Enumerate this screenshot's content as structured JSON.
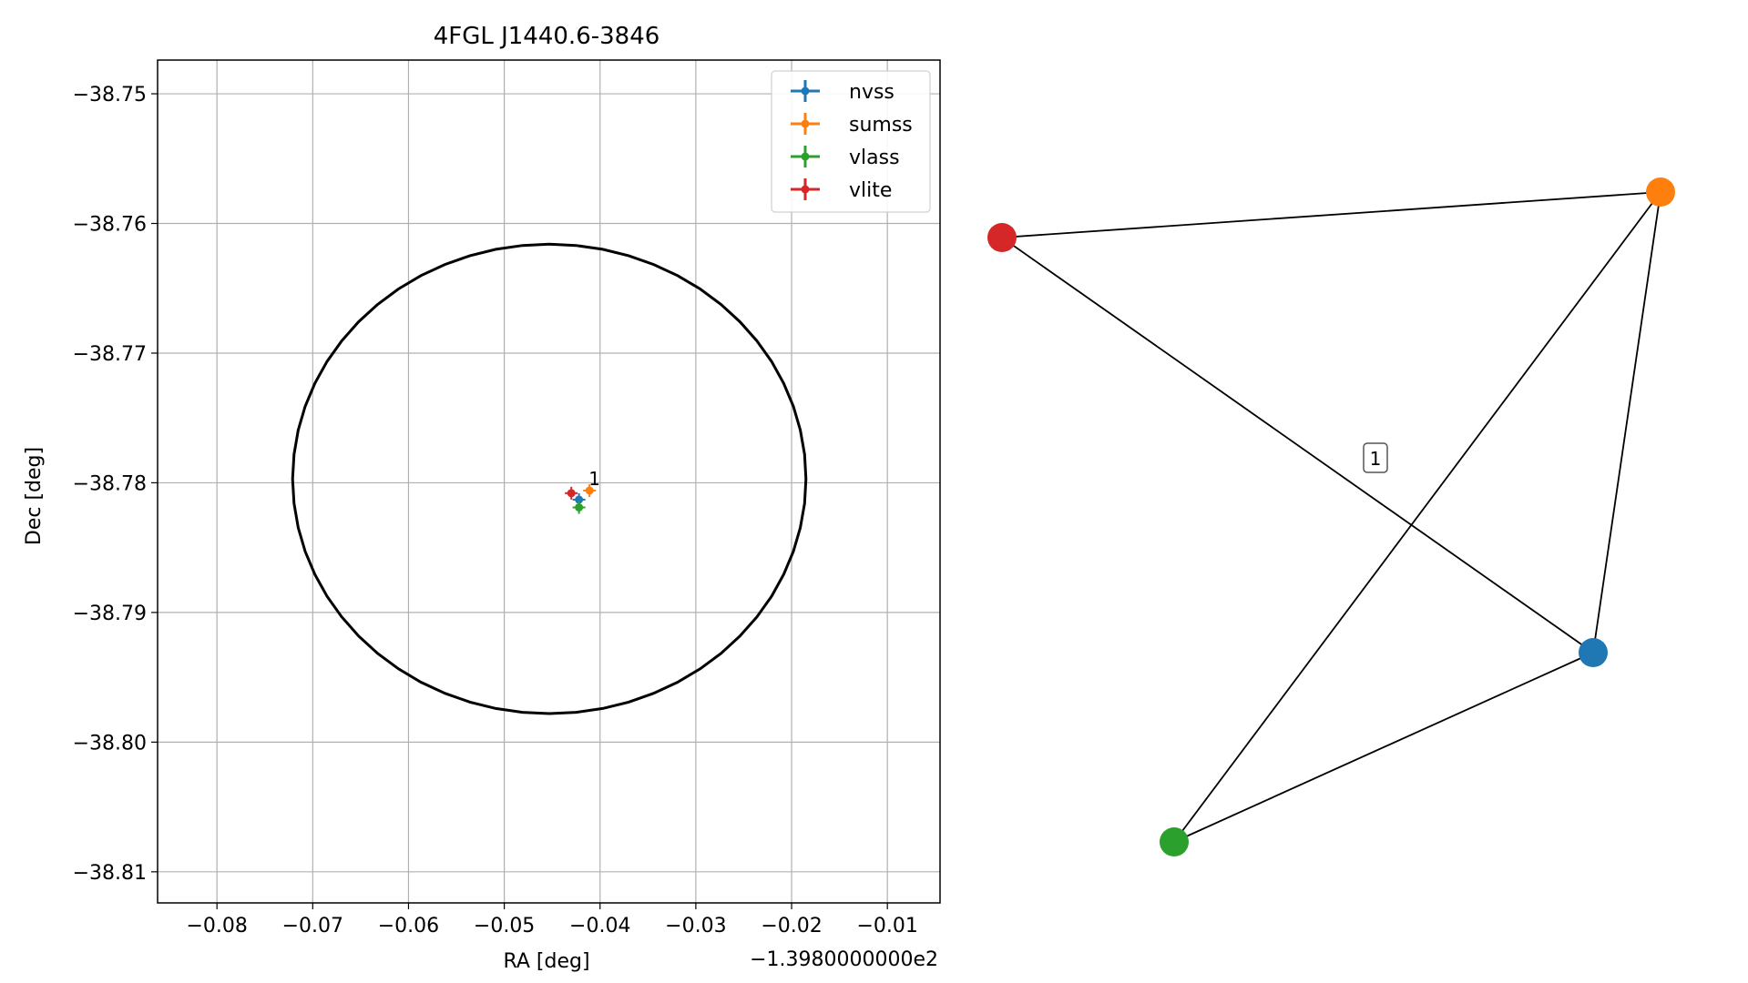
{
  "chart_data": [
    {
      "type": "scatter",
      "title": "4FGL J1440.6-3846",
      "xlabel": "RA [deg]",
      "ylabel": "Dec [deg]",
      "x_offset_label": "−1.3980000000e2",
      "xlim": [
        -0.0862,
        -0.0045
      ],
      "ylim": [
        -38.8124,
        -38.7474
      ],
      "xticks": [
        -0.08,
        -0.07,
        -0.06,
        -0.05,
        -0.04,
        -0.03,
        -0.02,
        -0.01
      ],
      "xtick_labels": [
        "−0.08",
        "−0.07",
        "−0.06",
        "−0.05",
        "−0.04",
        "−0.03",
        "−0.02",
        "−0.01"
      ],
      "yticks": [
        -38.75,
        -38.76,
        -38.77,
        -38.78,
        -38.79,
        -38.8,
        -38.81
      ],
      "ytick_labels": [
        "−38.75",
        "−38.76",
        "−38.77",
        "−38.78",
        "−38.79",
        "−38.80",
        "−38.81"
      ],
      "grid": true,
      "legend_position": "top-right",
      "ellipse": {
        "center_x": -0.0453,
        "center_y": -38.7797,
        "radius_x": 0.0268,
        "radius_y": 0.0181,
        "color": "#000000"
      },
      "series": [
        {
          "name": "nvss",
          "color": "#1f77b4",
          "x": -0.0422,
          "y": -38.7813
        },
        {
          "name": "sumss",
          "color": "#ff7f0e",
          "x": -0.0411,
          "y": -38.7806
        },
        {
          "name": "vlass",
          "color": "#2ca02c",
          "x": -0.0422,
          "y": -38.7819
        },
        {
          "name": "vlite",
          "color": "#d62728",
          "x": -0.043,
          "y": -38.7808
        }
      ],
      "annotations": [
        {
          "text": "1",
          "x": -0.041,
          "y": -38.7799
        }
      ]
    },
    {
      "type": "network",
      "nodes": [
        {
          "id": "vlite",
          "color": "#d62728"
        },
        {
          "id": "sumss",
          "color": "#ff7f0e"
        },
        {
          "id": "nvss",
          "color": "#1f77b4"
        },
        {
          "id": "vlass",
          "color": "#2ca02c"
        }
      ],
      "edges": [
        [
          "vlite",
          "sumss"
        ],
        [
          "vlite",
          "nvss"
        ],
        [
          "sumss",
          "nvss"
        ],
        [
          "sumss",
          "vlass"
        ],
        [
          "nvss",
          "vlass"
        ]
      ],
      "edge_label": "1"
    }
  ]
}
